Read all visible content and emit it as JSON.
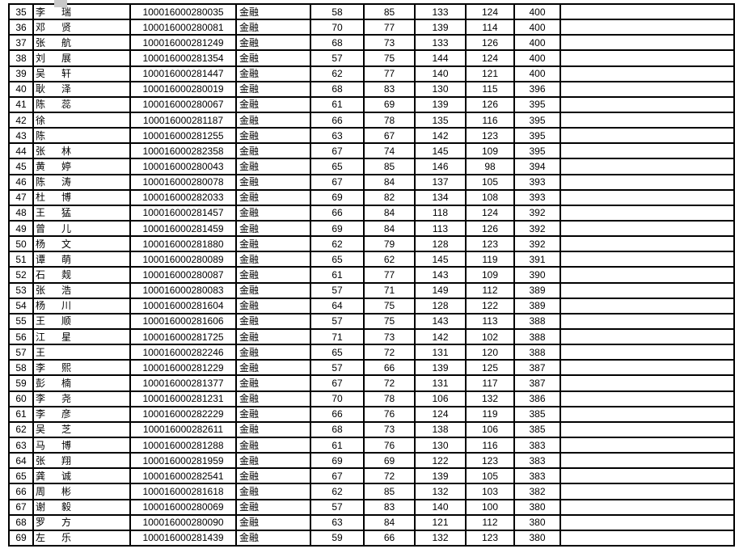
{
  "page": {
    "background": "#ffffff",
    "border_color": "#000000",
    "text_color": "#000000"
  },
  "table": {
    "rows": [
      {
        "no": "35",
        "name": [
          "李",
          "瑞"
        ],
        "id": "100016000280035",
        "major": "金融",
        "scores": [
          "58",
          "85",
          "133",
          "124"
        ],
        "total": "400"
      },
      {
        "no": "36",
        "name": [
          "邓",
          "贤"
        ],
        "id": "100016000280081",
        "major": "金融",
        "scores": [
          "70",
          "77",
          "139",
          "114"
        ],
        "total": "400"
      },
      {
        "no": "37",
        "name": [
          "张",
          "航"
        ],
        "id": "100016000281249",
        "major": "金融",
        "scores": [
          "68",
          "73",
          "133",
          "126"
        ],
        "total": "400"
      },
      {
        "no": "38",
        "name": [
          "刘",
          "展"
        ],
        "id": "100016000281354",
        "major": "金融",
        "scores": [
          "57",
          "75",
          "144",
          "124"
        ],
        "total": "400"
      },
      {
        "no": "39",
        "name": [
          "吴",
          "轩"
        ],
        "id": "100016000281447",
        "major": "金融",
        "scores": [
          "62",
          "77",
          "140",
          "121"
        ],
        "total": "400"
      },
      {
        "no": "40",
        "name": [
          "耿",
          "泽"
        ],
        "id": "100016000280019",
        "major": "金融",
        "scores": [
          "68",
          "83",
          "130",
          "115"
        ],
        "total": "396"
      },
      {
        "no": "41",
        "name": [
          "陈",
          "蕊"
        ],
        "id": "100016000280067",
        "major": "金融",
        "scores": [
          "61",
          "69",
          "139",
          "126"
        ],
        "total": "395"
      },
      {
        "no": "42",
        "name": [
          "徐"
        ],
        "id": "100016000281187",
        "major": "金融",
        "scores": [
          "66",
          "78",
          "135",
          "116"
        ],
        "total": "395"
      },
      {
        "no": "43",
        "name": [
          "陈"
        ],
        "id": "100016000281255",
        "major": "金融",
        "scores": [
          "63",
          "67",
          "142",
          "123"
        ],
        "total": "395"
      },
      {
        "no": "44",
        "name": [
          "张",
          "林"
        ],
        "id": "100016000282358",
        "major": "金融",
        "scores": [
          "67",
          "74",
          "145",
          "109"
        ],
        "total": "395"
      },
      {
        "no": "45",
        "name": [
          "黄",
          "婷"
        ],
        "id": "100016000280043",
        "major": "金融",
        "scores": [
          "65",
          "85",
          "146",
          "98"
        ],
        "total": "394"
      },
      {
        "no": "46",
        "name": [
          "陈",
          "涛"
        ],
        "id": "100016000280078",
        "major": "金融",
        "scores": [
          "67",
          "84",
          "137",
          "105"
        ],
        "total": "393"
      },
      {
        "no": "47",
        "name": [
          "杜",
          "博"
        ],
        "id": "100016000282033",
        "major": "金融",
        "scores": [
          "69",
          "82",
          "134",
          "108"
        ],
        "total": "393"
      },
      {
        "no": "48",
        "name": [
          "王",
          "猛"
        ],
        "id": "100016000281457",
        "major": "金融",
        "scores": [
          "66",
          "84",
          "118",
          "124"
        ],
        "total": "392"
      },
      {
        "no": "49",
        "name": [
          "曾",
          "儿"
        ],
        "id": "100016000281459",
        "major": "金融",
        "scores": [
          "69",
          "84",
          "113",
          "126"
        ],
        "total": "392"
      },
      {
        "no": "50",
        "name": [
          "杨",
          "文"
        ],
        "id": "100016000281880",
        "major": "金融",
        "scores": [
          "62",
          "79",
          "128",
          "123"
        ],
        "total": "392"
      },
      {
        "no": "51",
        "name": [
          "谭",
          "萌"
        ],
        "id": "100016000280089",
        "major": "金融",
        "scores": [
          "65",
          "62",
          "145",
          "119"
        ],
        "total": "391"
      },
      {
        "no": "52",
        "name": [
          "石",
          "觌"
        ],
        "id": "100016000280087",
        "major": "金融",
        "scores": [
          "61",
          "77",
          "143",
          "109"
        ],
        "total": "390"
      },
      {
        "no": "53",
        "name": [
          "张",
          "浩"
        ],
        "id": "100016000280083",
        "major": "金融",
        "scores": [
          "57",
          "71",
          "149",
          "112"
        ],
        "total": "389"
      },
      {
        "no": "54",
        "name": [
          "杨",
          "川"
        ],
        "id": "100016000281604",
        "major": "金融",
        "scores": [
          "64",
          "75",
          "128",
          "122"
        ],
        "total": "389"
      },
      {
        "no": "55",
        "name": [
          "王",
          "顺"
        ],
        "id": "100016000281606",
        "major": "金融",
        "scores": [
          "57",
          "75",
          "143",
          "113"
        ],
        "total": "388"
      },
      {
        "no": "56",
        "name": [
          "江",
          "星"
        ],
        "id": "100016000281725",
        "major": "金融",
        "scores": [
          "71",
          "73",
          "142",
          "102"
        ],
        "total": "388"
      },
      {
        "no": "57",
        "name": [
          "王"
        ],
        "id": "100016000282246",
        "major": "金融",
        "scores": [
          "65",
          "72",
          "131",
          "120"
        ],
        "total": "388"
      },
      {
        "no": "58",
        "name": [
          "李",
          "熙"
        ],
        "id": "100016000281229",
        "major": "金融",
        "scores": [
          "57",
          "66",
          "139",
          "125"
        ],
        "total": "387"
      },
      {
        "no": "59",
        "name": [
          "彭",
          "楠"
        ],
        "id": "100016000281377",
        "major": "金融",
        "scores": [
          "67",
          "72",
          "131",
          "117"
        ],
        "total": "387"
      },
      {
        "no": "60",
        "name": [
          "李",
          "尧"
        ],
        "id": "100016000281231",
        "major": "金融",
        "scores": [
          "70",
          "78",
          "106",
          "132"
        ],
        "total": "386"
      },
      {
        "no": "61",
        "name": [
          "李",
          "彦"
        ],
        "id": "100016000282229",
        "major": "金融",
        "scores": [
          "66",
          "76",
          "124",
          "119"
        ],
        "total": "385"
      },
      {
        "no": "62",
        "name": [
          "吴",
          "芝"
        ],
        "id": "100016000282611",
        "major": "金融",
        "scores": [
          "68",
          "73",
          "138",
          "106"
        ],
        "total": "385"
      },
      {
        "no": "63",
        "name": [
          "马",
          "博"
        ],
        "id": "100016000281288",
        "major": "金融",
        "scores": [
          "61",
          "76",
          "130",
          "116"
        ],
        "total": "383"
      },
      {
        "no": "64",
        "name": [
          "张",
          "翔"
        ],
        "id": "100016000281959",
        "major": "金融",
        "scores": [
          "69",
          "69",
          "122",
          "123"
        ],
        "total": "383"
      },
      {
        "no": "65",
        "name": [
          "龚",
          "诚"
        ],
        "id": "100016000282541",
        "major": "金融",
        "scores": [
          "67",
          "72",
          "139",
          "105"
        ],
        "total": "383"
      },
      {
        "no": "66",
        "name": [
          "周",
          "彬"
        ],
        "id": "100016000281618",
        "major": "金融",
        "scores": [
          "62",
          "85",
          "132",
          "103"
        ],
        "total": "382"
      },
      {
        "no": "67",
        "name": [
          "谢",
          "毅"
        ],
        "id": "100016000280069",
        "major": "金融",
        "scores": [
          "57",
          "83",
          "140",
          "100"
        ],
        "total": "380"
      },
      {
        "no": "68",
        "name": [
          "罗",
          "方"
        ],
        "id": "100016000280090",
        "major": "金融",
        "scores": [
          "63",
          "84",
          "121",
          "112"
        ],
        "total": "380"
      },
      {
        "no": "69",
        "name": [
          "左",
          "乐"
        ],
        "id": "100016000281439",
        "major": "金融",
        "scores": [
          "59",
          "66",
          "132",
          "123"
        ],
        "total": "380"
      }
    ]
  }
}
